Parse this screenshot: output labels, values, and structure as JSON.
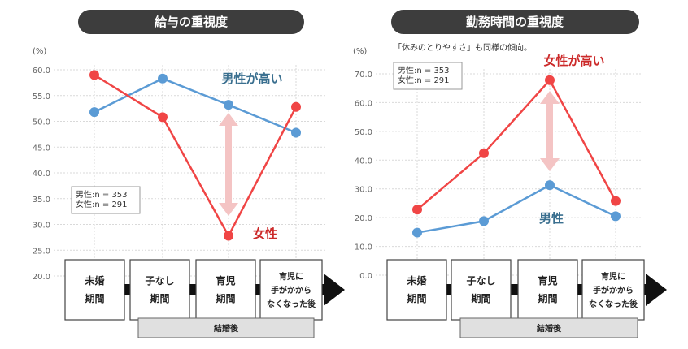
{
  "chart_data": [
    {
      "type": "line",
      "title": "給与の重視度",
      "unit": "(%)",
      "ylim": [
        20,
        60
      ],
      "yticks": [
        "60.0",
        "55.0",
        "50.0",
        "45.0",
        "40.0",
        "35.0",
        "30.0",
        "25.0",
        "20.0"
      ],
      "categories": [
        "未婚期間",
        "子なし期間",
        "育児期間",
        "育児に手がかからなくなった後"
      ],
      "stage_lines": [
        [
          "未婚",
          "期間"
        ],
        [
          "子なし",
          "期間"
        ],
        [
          "育児",
          "期間"
        ],
        [
          "育児に",
          "手がかから",
          "なくなった後"
        ]
      ],
      "post_marriage_label": "結婚後",
      "series": [
        {
          "name": "男性",
          "color": "#5b9bd5",
          "values": [
            51.8,
            58.3,
            53.2,
            47.8
          ]
        },
        {
          "name": "女性",
          "color": "#f04545",
          "values": [
            59.0,
            50.8,
            27.8,
            52.8
          ]
        }
      ],
      "legend": [
        "男性:n = 353",
        "女性:n = 291"
      ],
      "callout_male": "男性が高い",
      "callout_female": "女性"
    },
    {
      "type": "line",
      "title": "勤務時間の重視度",
      "unit": "(%)",
      "note": "「休みのとりやすさ」も同様の傾向。",
      "ylim": [
        0,
        70
      ],
      "yticks": [
        "70.0",
        "60.0",
        "50.0",
        "40.0",
        "30.0",
        "20.0",
        "10.0",
        "0.0"
      ],
      "categories": [
        "未婚期間",
        "子なし期間",
        "育児期間",
        "育児に手がかからなくなった後"
      ],
      "stage_lines": [
        [
          "未婚",
          "期間"
        ],
        [
          "子なし",
          "期間"
        ],
        [
          "育児",
          "期間"
        ],
        [
          "育児に",
          "手がかから",
          "なくなった後"
        ]
      ],
      "post_marriage_label": "結婚後",
      "series": [
        {
          "name": "男性",
          "color": "#5b9bd5",
          "values": [
            14.8,
            18.8,
            31.3,
            20.5
          ]
        },
        {
          "name": "女性",
          "color": "#f04545",
          "values": [
            22.8,
            42.4,
            67.8,
            25.8
          ]
        }
      ],
      "legend": [
        "男性:n = 353",
        "女性:n = 291"
      ],
      "callout_female": "女性が高い",
      "callout_male": "男性"
    }
  ]
}
